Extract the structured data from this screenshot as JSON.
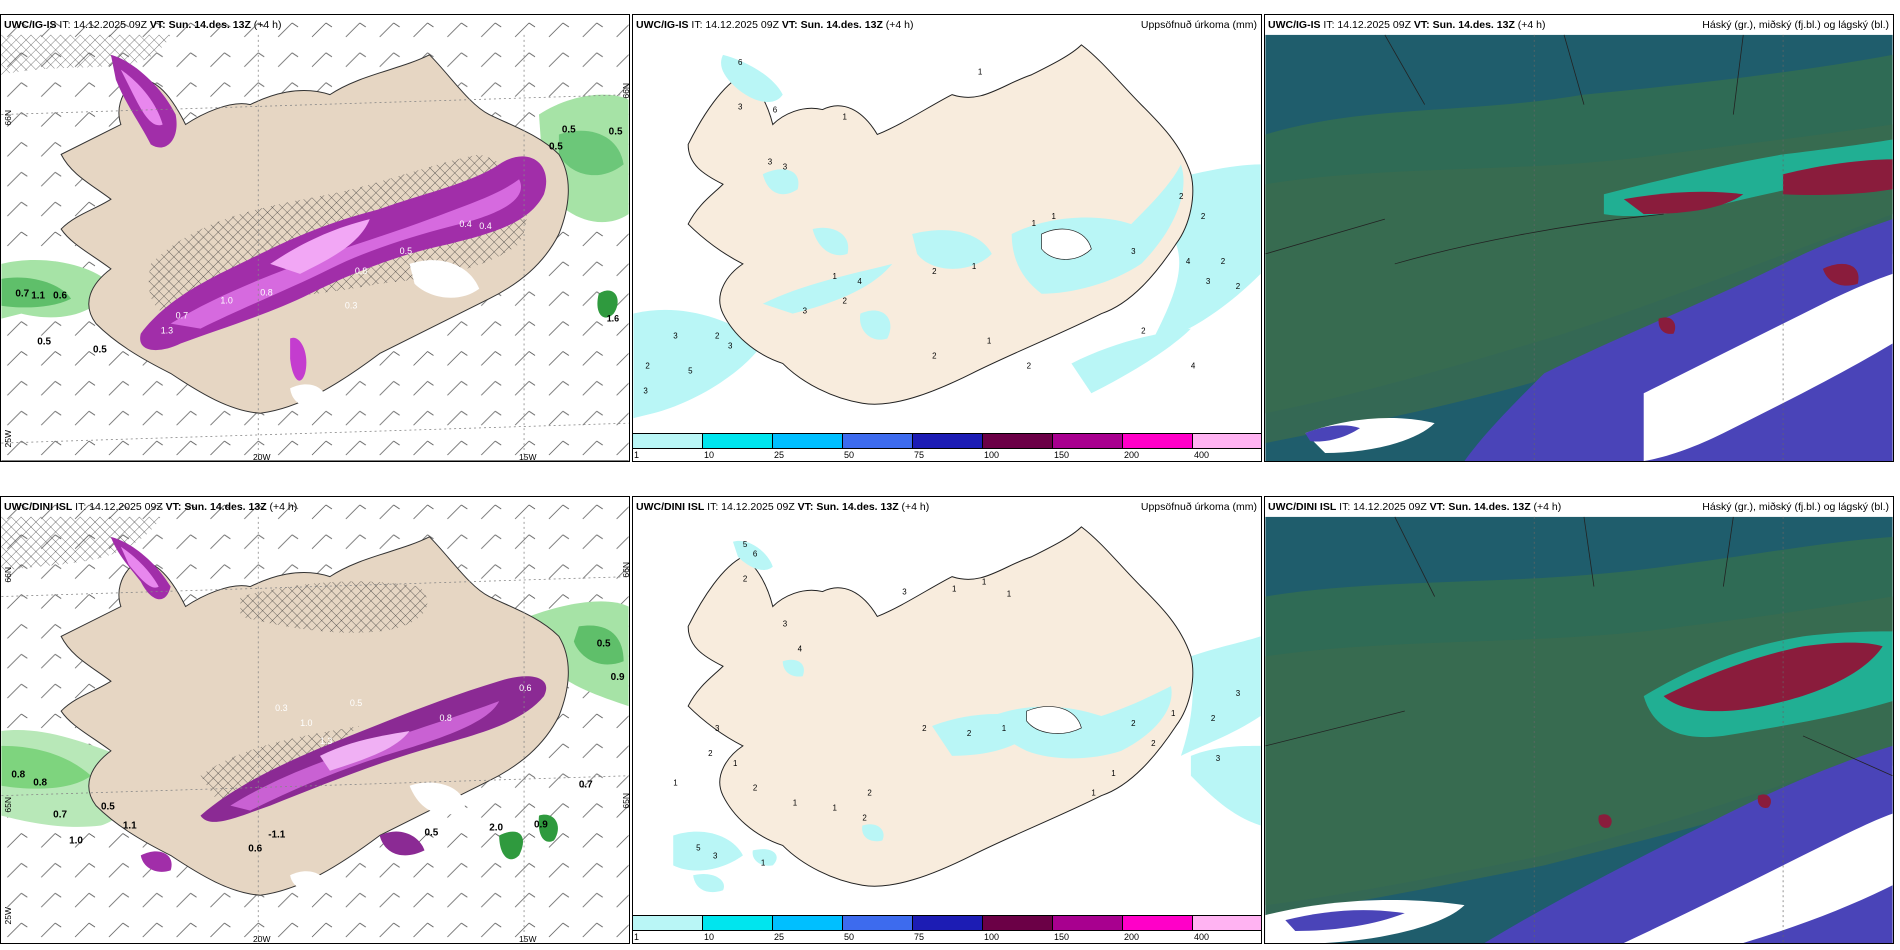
{
  "panels_top": {
    "left": {
      "model": "UWC/IG-IS",
      "init": " IT: 14.12.2025 09Z ",
      "vt_label": "VT:",
      "valid": "Sun. 14.des. 13Z",
      "lead": " (+4 h)",
      "right": ""
    },
    "middle": {
      "model": "UWC/IG-IS",
      "init": " IT: 14.12.2025 09Z ",
      "vt_label": "VT:",
      "valid": "Sun. 14.des. 13Z",
      "lead": " (+4 h)",
      "right": "Uppsöfnuð úrkoma (mm)"
    },
    "rightp": {
      "model": "UWC/IG-IS",
      "init": " IT: 14.12.2025 09Z ",
      "vt_label": "VT:",
      "valid": "Sun. 14.des. 13Z",
      "lead": " (+4 h)",
      "right": "Háský (gr.), miðský (fj.bl.) og lágský (bl.)"
    }
  },
  "panels_bottom": {
    "left": {
      "model": "UWC/DINI ISL",
      "init": " IT: 14.12.2025 09Z ",
      "vt_label": "VT:",
      "valid": "Sun. 14.des. 13Z",
      "lead": " (+4 h)",
      "right": ""
    },
    "middle": {
      "model": "UWC/DINI ISL",
      "init": " IT: 14.12.2025 09Z ",
      "vt_label": "VT:",
      "valid": "Sun. 14.des. 13Z",
      "lead": " (+4 h)",
      "right": "Uppsöfnuð úrkoma (mm)"
    },
    "rightp": {
      "model": "UWC/DINI ISL",
      "init": " IT: 14.12.2025 09Z ",
      "vt_label": "VT:",
      "valid": "Sun. 14.des. 13Z",
      "lead": " (+4 h)",
      "right": "Háský (gr.), miðský (fj.bl.) og lágský (bl.)"
    }
  },
  "axis_labels": {
    "lat66": "66N",
    "lat65": "65N",
    "lon25": "25W",
    "lon20": "20W",
    "lon15": "15W"
  },
  "colorbar": {
    "colors": [
      "#b9f6f6",
      "#00e5ee",
      "#00bfff",
      "#3d6bee",
      "#1c1cb4",
      "#6b0046",
      "#a8008f",
      "#ff00c8",
      "#ffb3f2"
    ],
    "ticks": [
      "1",
      "10",
      "25",
      "50",
      "75",
      "100",
      "150",
      "200",
      "400"
    ]
  },
  "colors": {
    "land": "#e6d6c3",
    "land_precip": "#f8ecdd",
    "cyan_precip": "#b9f6f6",
    "magenta": "#c43ccf",
    "pink": "#e887ee",
    "green": "#7ed47e",
    "sea_dark": "#1f5d6c",
    "cloud_mid": "#2f6b55",
    "cloud_high": "#8a1c3c",
    "cloud_low": "#4a44b8"
  },
  "labels_top_left": [
    "0.5",
    "0.5",
    "0.5",
    "0.7",
    "0.6",
    "1.1",
    "0.5",
    "0.5",
    "0.8",
    "0.4",
    "0.3",
    "0.5",
    "0.4",
    "0.7",
    "1.3",
    "0.8",
    "1.0",
    "1.6"
  ],
  "labels_top_mid": [
    "1",
    "1",
    "3",
    "3",
    "3",
    "6",
    "6",
    "1",
    "3",
    "2",
    "3",
    "3",
    "2",
    "5",
    "3",
    "2",
    "1",
    "4",
    "2",
    "1",
    "1",
    "2",
    "2",
    "1",
    "3",
    "2",
    "2",
    "4",
    "2",
    "2",
    "3",
    "2",
    "4"
  ],
  "labels_bottom_left": [
    "0.5",
    "0.9",
    "0.8",
    "0.8",
    "0.7",
    "0.5",
    "1.0",
    "1.1",
    "0.6",
    "-1.1",
    "0.5",
    "2.0",
    "0.9",
    "0.7",
    "0.3",
    "0.5",
    "1.0",
    "0.8",
    "0.6",
    "1.3"
  ],
  "labels_bottom_mid": [
    "5",
    "6",
    "3",
    "2",
    "3",
    "4",
    "1",
    "1",
    "1",
    "1",
    "3",
    "2",
    "1",
    "2",
    "1",
    "1",
    "2",
    "2",
    "2",
    "1",
    "5",
    "3",
    "1",
    "2",
    "2",
    "3",
    "1",
    "1",
    "1",
    "2",
    "3",
    "2"
  ]
}
